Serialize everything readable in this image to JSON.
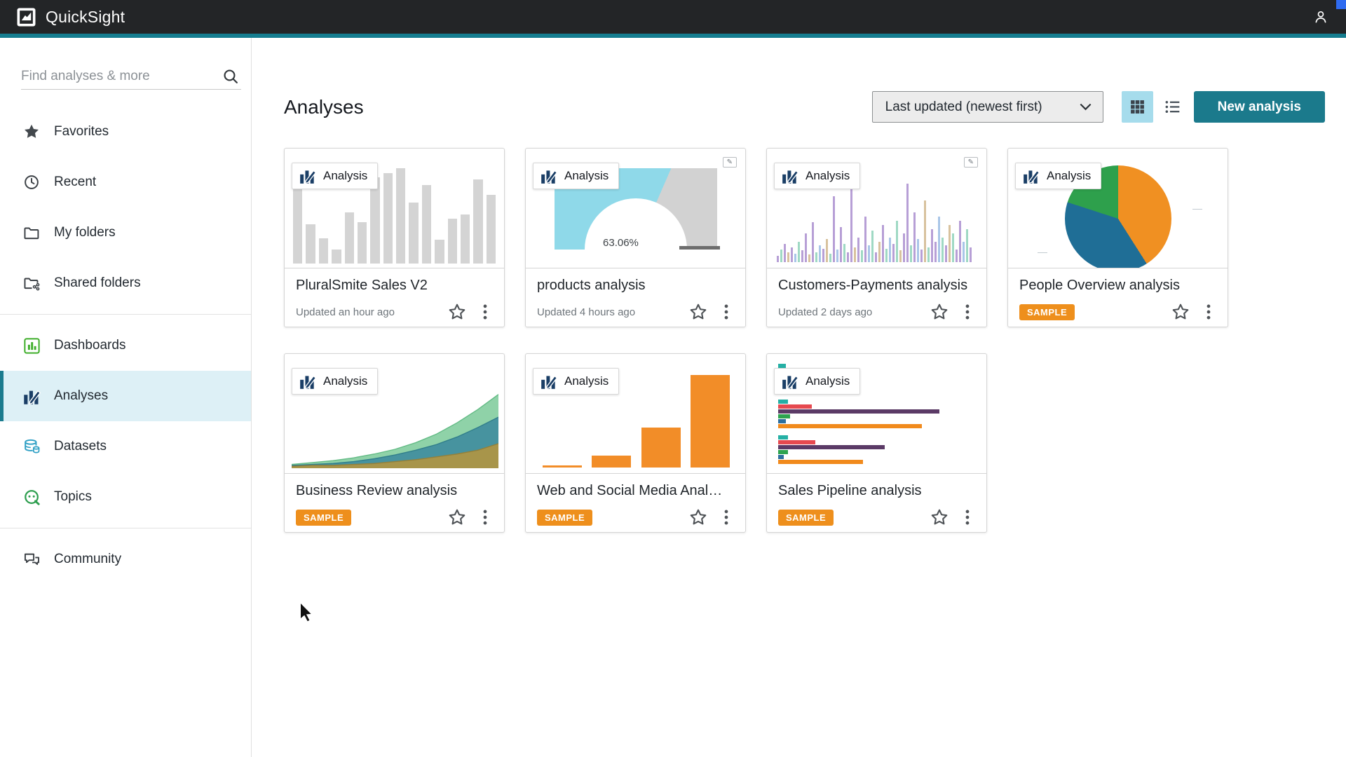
{
  "topbar": {
    "app_name": "QuickSight"
  },
  "sidebar": {
    "search": {
      "placeholder": "Find analyses & more"
    },
    "sections": [
      {
        "items": [
          {
            "label": "Favorites",
            "icon": "star"
          },
          {
            "label": "Recent",
            "icon": "clock"
          },
          {
            "label": "My folders",
            "icon": "folder"
          },
          {
            "label": "Shared folders",
            "icon": "shared-folder"
          }
        ]
      },
      {
        "items": [
          {
            "label": "Dashboards",
            "icon": "dashboards"
          },
          {
            "label": "Analyses",
            "icon": "analyses",
            "active": true
          },
          {
            "label": "Datasets",
            "icon": "datasets"
          },
          {
            "label": "Topics",
            "icon": "topics"
          }
        ]
      },
      {
        "items": [
          {
            "label": "Community",
            "icon": "community"
          }
        ]
      }
    ]
  },
  "header": {
    "title": "Analyses",
    "sort": {
      "value": "Last updated (newest first)"
    },
    "view_toggle": {
      "active": "grid"
    },
    "new_analysis_label": "New analysis"
  },
  "sample_badge_label": "SAMPLE",
  "cards": [
    {
      "badge": "Analysis",
      "title": "PluralSmite Sales V2",
      "meta": "Updated an hour ago",
      "sample": false,
      "thumb": {
        "type": "bar",
        "color": "#d4d4d4",
        "values": [
          88,
          40,
          26,
          14,
          52,
          42,
          88,
          92,
          97,
          62,
          80,
          24,
          46,
          50,
          86,
          70
        ]
      }
    },
    {
      "badge": "Analysis",
      "title": "products analysis",
      "meta": "Updated 4 hours ago",
      "sample": false,
      "corner_indicator": true,
      "thumb": {
        "type": "gauge",
        "percent": 63.06,
        "label": "63.06%",
        "fill": "#8fd9e9",
        "track": "#d2d2d2"
      }
    },
    {
      "badge": "Analysis",
      "title": "Customers-Payments analysis",
      "meta": "Updated 2 days ago",
      "sample": false,
      "corner_indicator": true,
      "thumb": {
        "type": "sparkbars",
        "colors": [
          "#b79fd6",
          "#9fd9c4",
          "#d8c29e",
          "#a9c6e8",
          "#c9a9d8"
        ],
        "bars": [
          [
            8,
            0
          ],
          [
            15,
            1
          ],
          [
            22,
            0
          ],
          [
            12,
            2
          ],
          [
            18,
            0
          ],
          [
            10,
            3
          ],
          [
            25,
            1
          ],
          [
            14,
            0
          ],
          [
            35,
            0
          ],
          [
            9,
            2
          ],
          [
            48,
            0
          ],
          [
            12,
            1
          ],
          [
            20,
            3
          ],
          [
            16,
            0
          ],
          [
            28,
            2
          ],
          [
            10,
            1
          ],
          [
            80,
            0
          ],
          [
            15,
            3
          ],
          [
            42,
            0
          ],
          [
            22,
            1
          ],
          [
            12,
            0
          ],
          [
            95,
            0
          ],
          [
            18,
            2
          ],
          [
            30,
            0
          ],
          [
            14,
            1
          ],
          [
            55,
            0
          ],
          [
            20,
            3
          ],
          [
            38,
            1
          ],
          [
            12,
            0
          ],
          [
            25,
            2
          ],
          [
            45,
            0
          ],
          [
            16,
            1
          ],
          [
            30,
            3
          ],
          [
            22,
            0
          ],
          [
            50,
            1
          ],
          [
            14,
            2
          ],
          [
            35,
            0
          ],
          [
            95,
            0
          ],
          [
            20,
            1
          ],
          [
            60,
            0
          ],
          [
            28,
            3
          ],
          [
            15,
            0
          ],
          [
            75,
            2
          ],
          [
            18,
            1
          ],
          [
            40,
            0
          ],
          [
            25,
            0
          ],
          [
            55,
            3
          ],
          [
            30,
            1
          ],
          [
            20,
            0
          ],
          [
            45,
            2
          ],
          [
            35,
            1
          ],
          [
            15,
            0
          ],
          [
            50,
            0
          ],
          [
            25,
            3
          ],
          [
            40,
            1
          ],
          [
            18,
            0
          ]
        ]
      }
    },
    {
      "badge": "Analysis",
      "title": "People Overview analysis",
      "meta": "",
      "sample": true,
      "thumb": {
        "type": "pie",
        "slices": [
          {
            "value": 41,
            "color": "#f09022"
          },
          {
            "value": 39,
            "color": "#1f6e96"
          },
          {
            "value": 20,
            "color": "#2ea04c"
          }
        ]
      }
    },
    {
      "badge": "Analysis",
      "title": "Business Review analysis",
      "meta": "",
      "sample": true,
      "thumb": {
        "type": "area",
        "series": [
          {
            "color": "#8fd2a8",
            "edge": "#63bb85",
            "values": [
              4,
              6,
              8,
              11,
              15,
              20,
              27,
              36,
              48,
              62,
              78
            ]
          },
          {
            "color": "#47939f",
            "edge": "#317e8b",
            "values": [
              3,
              4,
              5,
              7,
              10,
              14,
              19,
              25,
              33,
              43,
              54
            ]
          },
          {
            "color": "#a8954a",
            "edge": "#93803a",
            "values": [
              2,
              3,
              3,
              4,
              5,
              7,
              9,
              12,
              15,
              19,
              26
            ]
          }
        ]
      }
    },
    {
      "badge": "Analysis",
      "title": "Web and Social Media Anal…",
      "meta": "",
      "sample": true,
      "thumb": {
        "type": "bar",
        "color": "#f28d28",
        "wide": true,
        "values": [
          2,
          12,
          40,
          93
        ]
      }
    },
    {
      "badge": "Analysis",
      "title": "Sales Pipeline analysis",
      "meta": "",
      "sample": true,
      "thumb": {
        "type": "hbars",
        "colors": [
          "#25b0a5",
          "#e6494f",
          "#5b3a66",
          "#2ea44f",
          "#2d6f9e",
          "#f18a1c"
        ],
        "groups": [
          [
            4,
            13,
            17,
            6,
            3,
            22
          ],
          [
            5,
            17,
            82,
            6,
            4,
            73
          ],
          [
            5,
            19,
            54,
            5,
            3,
            43
          ]
        ]
      }
    }
  ],
  "colors": {
    "topbar_bg": "#232527",
    "accent_teal": "#157d8f",
    "active_nav_bg": "#ddf0f6",
    "active_nav_border": "#1b7b8e",
    "primary_button": "#1b7a8c",
    "grid_active_bg": "#a6dcec",
    "sample_orange": "#ee8f1c"
  }
}
